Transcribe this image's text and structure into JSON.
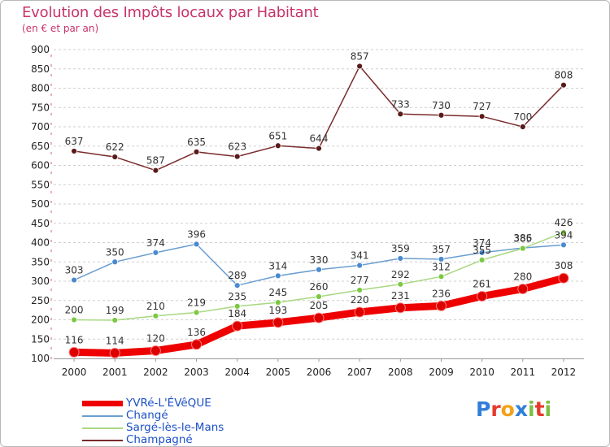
{
  "title": "Evolution des Impôts locaux par Habitant",
  "subtitle": "(en € et par an)",
  "logo_text": [
    "P",
    "r",
    "o",
    "x",
    "i",
    "t",
    "i"
  ],
  "logo_colors": [
    "#2f7fd8",
    "#e43b2f",
    "#f1a21a",
    "#2f7fd8",
    "#7cc043",
    "#e43b2f",
    "#7cc043"
  ],
  "chart_data": {
    "type": "line",
    "title": "Evolution des Impôts locaux par Habitant",
    "subtitle": "(en € et par an)",
    "xlabel": "",
    "ylabel": "",
    "ylim": [
      100,
      900
    ],
    "yticks": [
      100,
      150,
      200,
      250,
      300,
      350,
      400,
      450,
      500,
      550,
      600,
      650,
      700,
      750,
      800,
      850,
      900
    ],
    "categories": [
      "2000",
      "2001",
      "2002",
      "2003",
      "2004",
      "2005",
      "2006",
      "2007",
      "2008",
      "2009",
      "2010",
      "2011",
      "2012"
    ],
    "legend_position": "bottom-left",
    "series": [
      {
        "name": "YVRé-L'ÉVêQUE",
        "color": "#ee0000",
        "marker": "#dd0000",
        "width": "thick",
        "values": [
          116,
          114,
          120,
          136,
          184,
          193,
          205,
          220,
          231,
          236,
          261,
          280,
          308
        ]
      },
      {
        "name": "Changé",
        "color": "#6a9ed0",
        "marker": "#4a8ad0",
        "width": "thin",
        "values": [
          303,
          350,
          374,
          396,
          289,
          314,
          330,
          341,
          359,
          357,
          374,
          386,
          394
        ]
      },
      {
        "name": "Sargé-lès-le-Mans",
        "color": "#a8d880",
        "marker": "#7cc843",
        "width": "thin",
        "values": [
          200,
          199,
          210,
          219,
          235,
          245,
          260,
          277,
          292,
          312,
          355,
          385,
          426
        ]
      },
      {
        "name": "Champagné",
        "color": "#7a2a2a",
        "marker": "#5a1a1a",
        "width": "thin",
        "values": [
          637,
          622,
          587,
          635,
          623,
          651,
          644,
          857,
          733,
          730,
          727,
          700,
          808
        ]
      }
    ]
  }
}
